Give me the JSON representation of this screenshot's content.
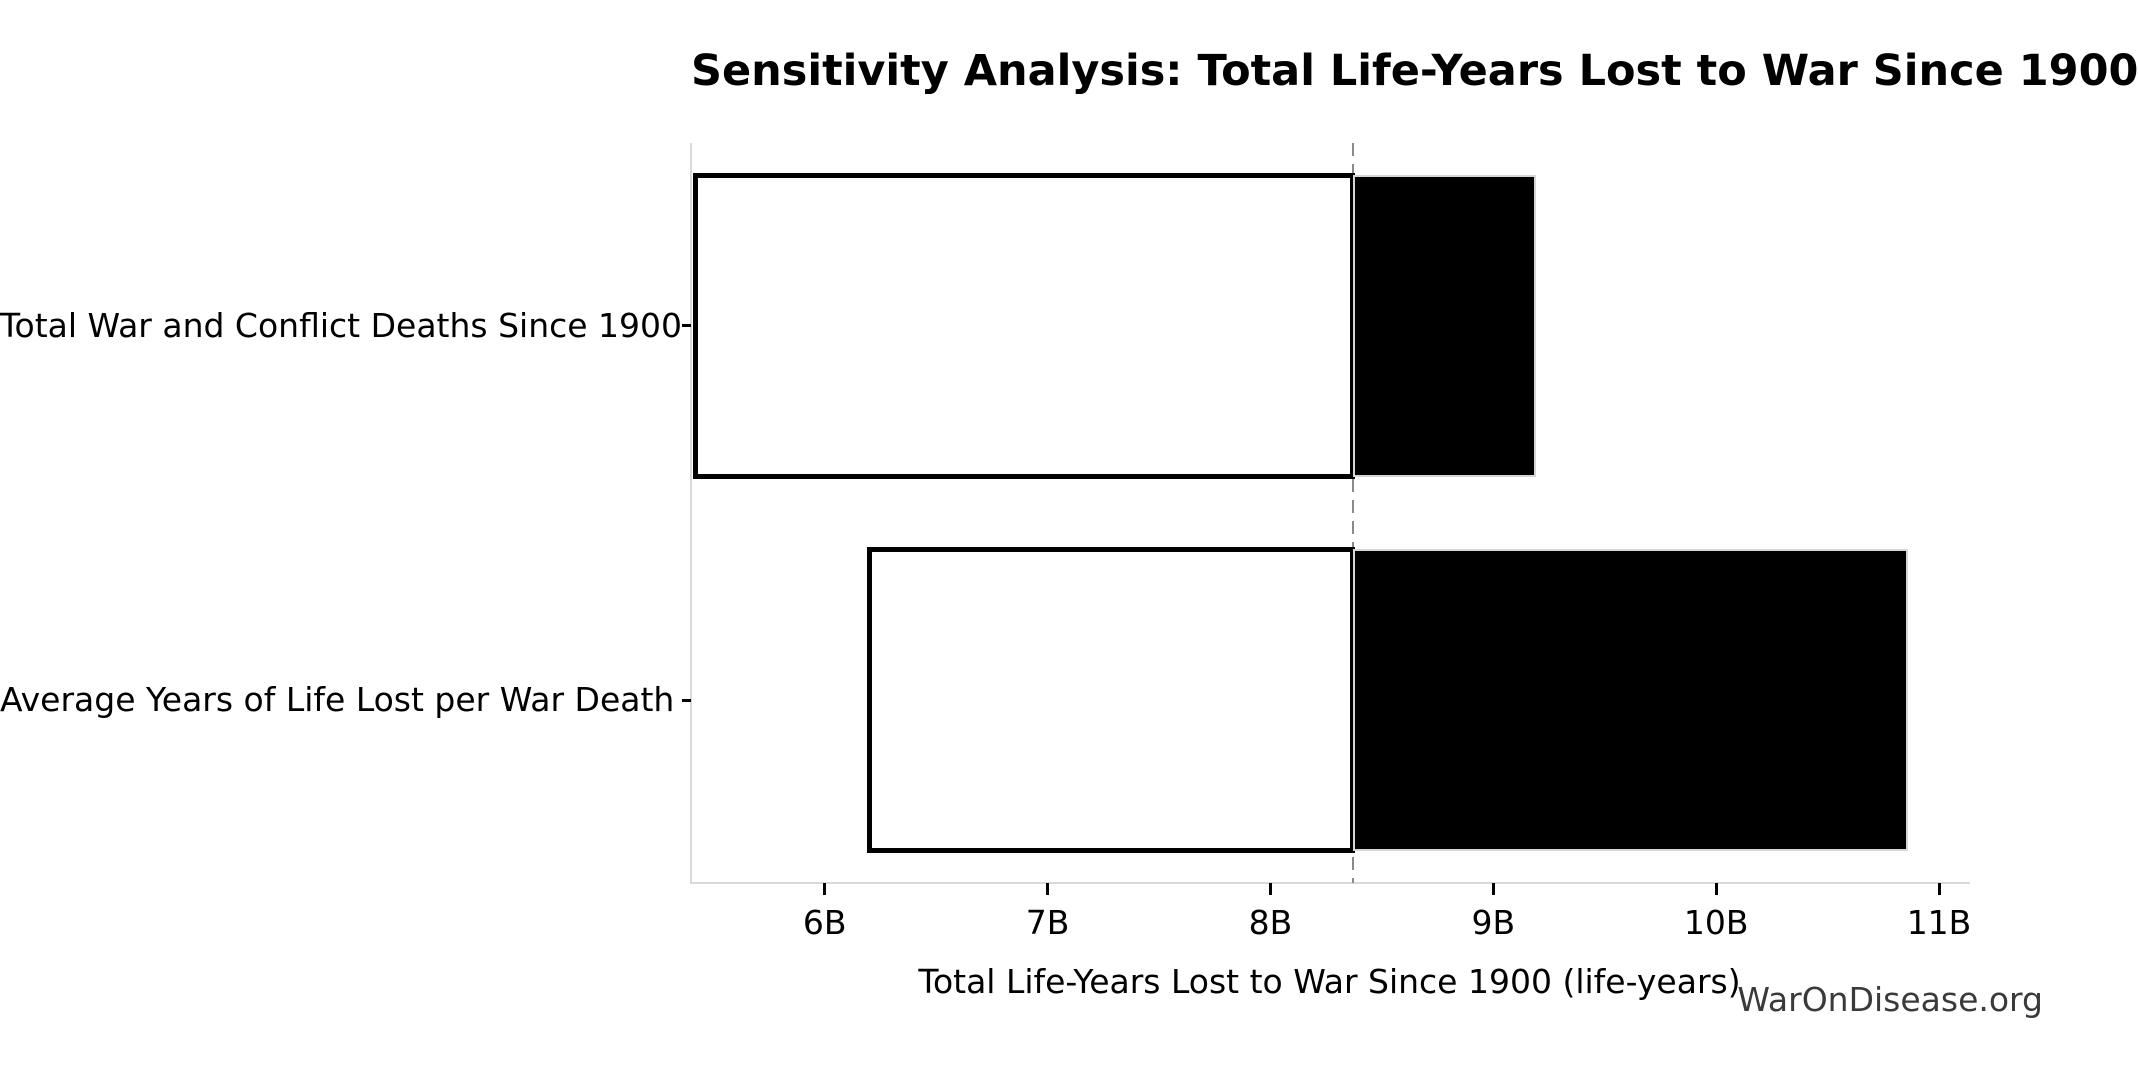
{
  "watermark": {
    "text": "WarOnDisease.org"
  },
  "chart_data": {
    "type": "bar",
    "subtype": "tornado-sensitivity",
    "orientation": "horizontal",
    "title": "Sensitivity Analysis: Total Life-Years Lost to War Since 1900",
    "xlabel": "Total Life-Years Lost to War Since 1900 (life-years)",
    "ylabel": "",
    "unit": "billions of life-years (B = billion)",
    "base_case_B": 8.37,
    "xlim_B": [
      5.4,
      11.13
    ],
    "x_ticks": [
      {
        "value_B": 6,
        "label": "6B"
      },
      {
        "value_B": 7,
        "label": "7B"
      },
      {
        "value_B": 8,
        "label": "8B"
      },
      {
        "value_B": 9,
        "label": "9B"
      },
      {
        "value_B": 10,
        "label": "10B"
      },
      {
        "value_B": 11,
        "label": "11B"
      }
    ],
    "categories": [
      "Total War and Conflict Deaths Since 1900",
      "Average Years of Life Lost per War Death"
    ],
    "bars": [
      {
        "category": "Total War and Conflict Deaths Since 1900",
        "low_B": 5.42,
        "base_B": 8.37,
        "high_B": 9.19
      },
      {
        "category": "Average Years of Life Lost per War Death",
        "low_B": 6.2,
        "base_B": 8.37,
        "high_B": 10.86
      }
    ],
    "legend": "none",
    "grid": false,
    "colors": {
      "low_segment_fill": "#ffffff",
      "low_segment_edge": "#000000",
      "high_segment_fill": "#000000",
      "high_segment_edge": "#d6d6d6",
      "base_case_line": "#8a8a8a",
      "spine": "#d9d9d9",
      "text": "#000000",
      "watermark": "#3a3a3a",
      "background": "#ffffff"
    }
  }
}
